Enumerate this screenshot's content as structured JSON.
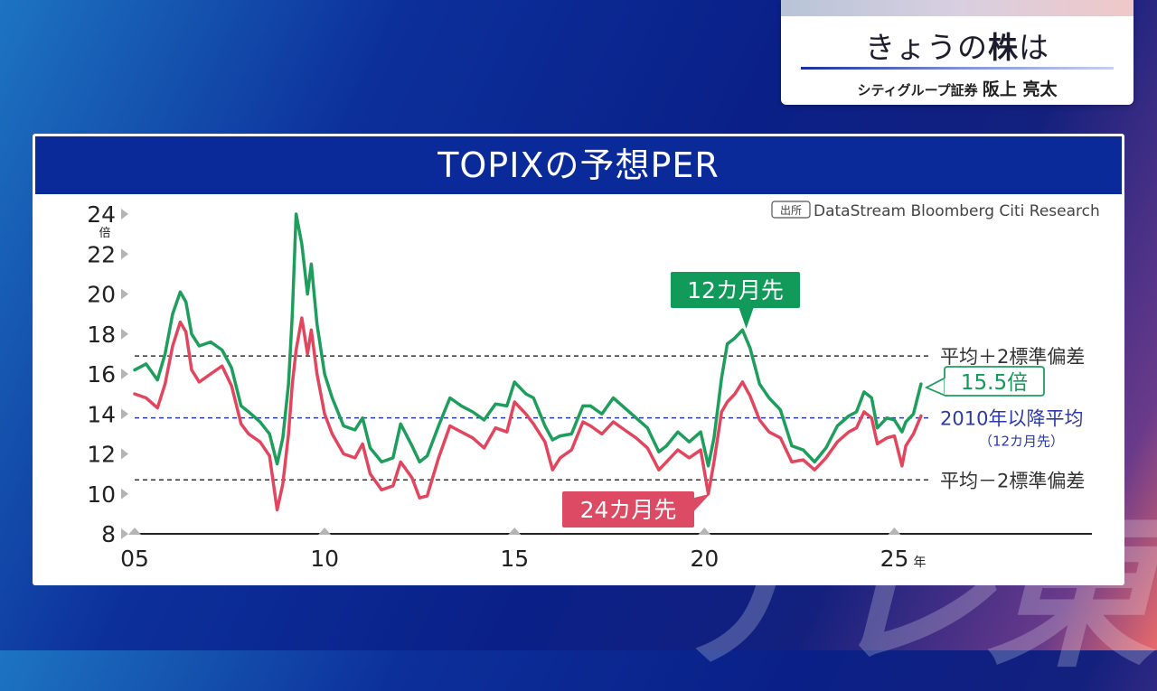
{
  "watermark": "テレ東",
  "info_card": {
    "title_pre": "きょうの",
    "title_bold": "株",
    "title_post": "は",
    "company": "シティグループ証券",
    "person": "阪上 亮太"
  },
  "panel": {
    "title": "TOPIXの予想PER"
  },
  "chart_data": {
    "type": "line",
    "source_label": "出所",
    "source_text": "DataStream Bloomberg Citi Research",
    "y_unit": "倍",
    "x_unit": "年",
    "xlim": [
      2005,
      2030.2
    ],
    "ylim": [
      8,
      24
    ],
    "y_ticks": [
      8,
      10,
      12,
      14,
      16,
      18,
      20,
      22,
      24
    ],
    "x_ticks": [
      {
        "value": 2005,
        "label": "05"
      },
      {
        "value": 2010,
        "label": "10"
      },
      {
        "value": 2015,
        "label": "15"
      },
      {
        "value": 2020,
        "label": "20"
      },
      {
        "value": 2025,
        "label": "25"
      }
    ],
    "reference_lines": [
      {
        "name": "upper",
        "value": 16.9,
        "label": "平均＋2標準偏差",
        "color": "#333333"
      },
      {
        "name": "avg",
        "value": 13.8,
        "label": "2010年以降平均",
        "sublabel": "（12カ月先）",
        "color": "#2b3aa8"
      },
      {
        "name": "lower",
        "value": 10.7,
        "label": "平均－2標準偏差",
        "color": "#333333"
      }
    ],
    "series": [
      {
        "name": "12カ月先",
        "color": "#1e9e5c",
        "label_color": "#129a5a",
        "x": [
          2005.0,
          2005.3,
          2005.6,
          2005.8,
          2006.0,
          2006.2,
          2006.35,
          2006.5,
          2006.7,
          2007.0,
          2007.3,
          2007.55,
          2007.8,
          2008.0,
          2008.3,
          2008.55,
          2008.75,
          2008.9,
          2009.05,
          2009.15,
          2009.25,
          2009.4,
          2009.55,
          2009.65,
          2009.8,
          2010.0,
          2010.2,
          2010.5,
          2010.8,
          2011.0,
          2011.2,
          2011.5,
          2011.8,
          2012.0,
          2012.3,
          2012.5,
          2012.7,
          2013.0,
          2013.3,
          2013.6,
          2013.9,
          2014.2,
          2014.5,
          2014.8,
          2015.0,
          2015.3,
          2015.5,
          2015.8,
          2016.0,
          2016.2,
          2016.5,
          2016.8,
          2017.0,
          2017.3,
          2017.6,
          2017.9,
          2018.2,
          2018.5,
          2018.8,
          2019.0,
          2019.3,
          2019.6,
          2019.9,
          2020.1,
          2020.25,
          2020.45,
          2020.6,
          2020.8,
          2021.0,
          2021.2,
          2021.45,
          2021.7,
          2022.0,
          2022.3,
          2022.6,
          2022.9,
          2023.2,
          2023.5,
          2023.8,
          2024.0,
          2024.2,
          2024.4,
          2024.55,
          2024.8,
          2025.0,
          2025.2,
          2025.3,
          2025.5,
          2025.7
        ],
        "values": [
          16.2,
          16.5,
          15.7,
          17.0,
          19.0,
          20.1,
          19.6,
          18.0,
          17.4,
          17.6,
          17.2,
          16.3,
          14.4,
          14.1,
          13.6,
          13.0,
          11.5,
          12.8,
          15.5,
          19.0,
          24.0,
          22.5,
          20.0,
          21.5,
          18.5,
          16.0,
          14.8,
          13.4,
          13.2,
          13.8,
          12.3,
          11.6,
          11.8,
          13.5,
          12.4,
          11.6,
          11.9,
          13.4,
          14.8,
          14.4,
          14.1,
          13.7,
          14.5,
          14.4,
          15.6,
          15.0,
          14.8,
          13.4,
          12.7,
          12.9,
          13.0,
          14.4,
          14.4,
          14.0,
          14.8,
          14.3,
          13.8,
          13.3,
          12.1,
          12.4,
          13.1,
          12.6,
          13.1,
          11.4,
          12.8,
          15.8,
          17.5,
          17.8,
          18.2,
          17.3,
          15.5,
          14.8,
          14.2,
          12.4,
          12.2,
          11.6,
          12.3,
          13.4,
          13.9,
          14.1,
          15.1,
          14.8,
          13.3,
          13.8,
          13.7,
          13.1,
          13.6,
          14.0,
          15.5
        ]
      },
      {
        "name": "24カ月先",
        "color": "#e2465e",
        "label_color": "#dd4a63",
        "x": [
          2005.0,
          2005.3,
          2005.6,
          2005.8,
          2006.0,
          2006.2,
          2006.35,
          2006.5,
          2006.7,
          2007.0,
          2007.3,
          2007.55,
          2007.8,
          2008.0,
          2008.3,
          2008.55,
          2008.75,
          2008.9,
          2009.05,
          2009.15,
          2009.25,
          2009.4,
          2009.55,
          2009.65,
          2009.8,
          2010.0,
          2010.2,
          2010.5,
          2010.8,
          2011.0,
          2011.2,
          2011.5,
          2011.8,
          2012.0,
          2012.3,
          2012.5,
          2012.7,
          2013.0,
          2013.3,
          2013.6,
          2013.9,
          2014.2,
          2014.5,
          2014.8,
          2015.0,
          2015.3,
          2015.5,
          2015.8,
          2016.0,
          2016.2,
          2016.5,
          2016.8,
          2017.0,
          2017.3,
          2017.6,
          2017.9,
          2018.2,
          2018.5,
          2018.8,
          2019.0,
          2019.3,
          2019.6,
          2019.9,
          2020.1,
          2020.25,
          2020.45,
          2020.6,
          2020.8,
          2021.0,
          2021.2,
          2021.45,
          2021.7,
          2022.0,
          2022.3,
          2022.6,
          2022.9,
          2023.2,
          2023.5,
          2023.8,
          2024.0,
          2024.2,
          2024.4,
          2024.55,
          2024.8,
          2025.0,
          2025.2,
          2025.3,
          2025.5,
          2025.7
        ],
        "values": [
          15.0,
          14.8,
          14.3,
          15.5,
          17.4,
          18.6,
          18.1,
          16.2,
          15.6,
          16.0,
          16.4,
          15.4,
          13.5,
          13.0,
          12.6,
          11.9,
          9.2,
          10.5,
          13.0,
          15.5,
          17.2,
          18.8,
          17.0,
          18.2,
          16.0,
          14.0,
          13.0,
          12.0,
          11.8,
          12.5,
          11.0,
          10.2,
          10.4,
          11.6,
          10.8,
          9.8,
          9.9,
          11.8,
          13.4,
          13.1,
          12.8,
          12.3,
          13.3,
          13.1,
          14.6,
          14.0,
          13.5,
          12.6,
          11.2,
          11.8,
          12.2,
          13.6,
          13.4,
          13.0,
          13.6,
          13.2,
          12.8,
          12.3,
          11.2,
          11.6,
          12.2,
          11.8,
          12.2,
          10.0,
          11.6,
          14.1,
          14.6,
          15.0,
          15.6,
          14.9,
          13.7,
          13.1,
          12.8,
          11.6,
          11.7,
          11.2,
          11.8,
          12.6,
          13.1,
          13.3,
          14.1,
          13.8,
          12.5,
          12.8,
          12.9,
          11.4,
          12.4,
          13.0,
          13.9
        ]
      }
    ],
    "callouts": [
      {
        "series": "12カ月先",
        "text": "12カ月先",
        "points_to": [
          2021.1,
          18.0
        ]
      },
      {
        "series": "24カ月先",
        "text": "24カ月先",
        "points_to": [
          2020.15,
          10.0
        ]
      },
      {
        "series": "12カ月先",
        "text": "15.5倍",
        "value": 15.5
      }
    ],
    "grid": false,
    "legend": "inline callouts"
  }
}
